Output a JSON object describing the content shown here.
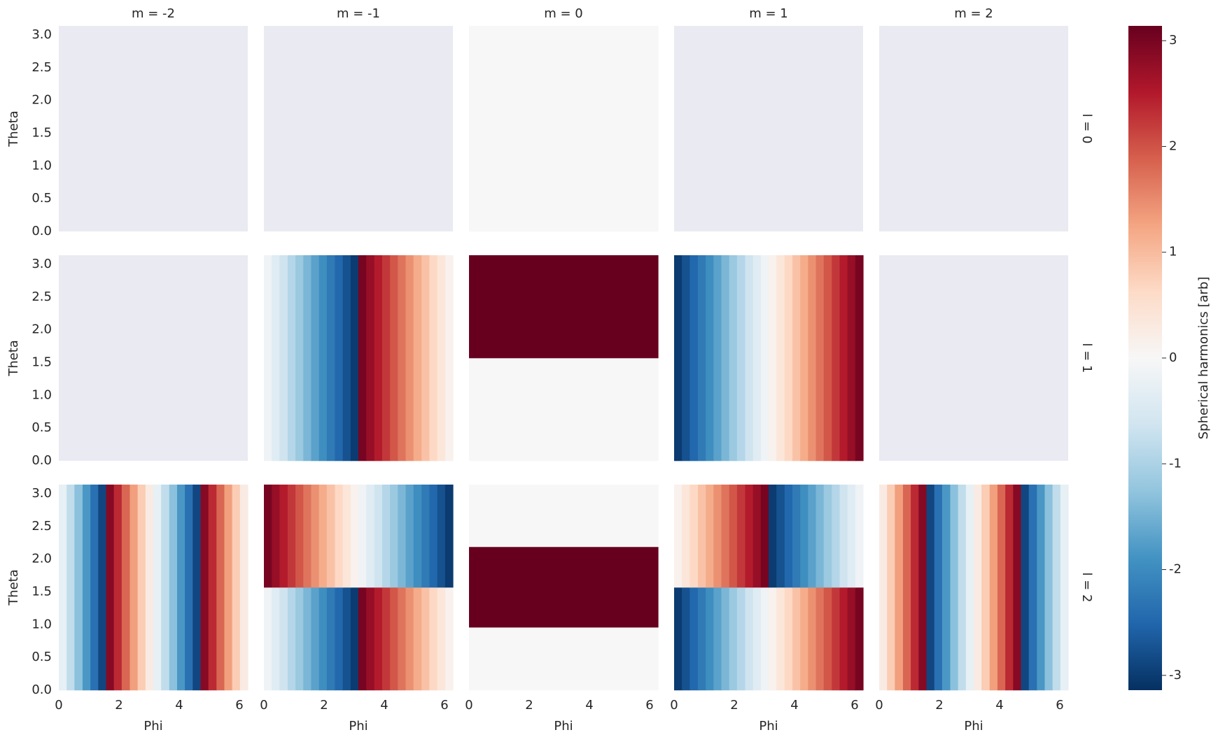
{
  "chart_data": {
    "type": "heatmap-grid",
    "col_titles": [
      "m = -2",
      "m = -1",
      "m = 0",
      "m = 1",
      "m = 2"
    ],
    "row_titles": [
      "l = 0",
      "l = 1",
      "l = 2"
    ],
    "xlabel": "Phi",
    "ylabel": "Theta",
    "xlim": [
      0,
      6.28
    ],
    "ylim": [
      0,
      3.14
    ],
    "xticks": [
      0,
      2,
      4,
      6
    ],
    "yticks": [
      {
        "value": 0,
        "label": "0.0"
      },
      {
        "value": 0.5,
        "label": "0.5"
      },
      {
        "value": 1,
        "label": "1.0"
      },
      {
        "value": 1.5,
        "label": "1.5"
      },
      {
        "value": 2,
        "label": "2.0"
      },
      {
        "value": 2.5,
        "label": "2.5"
      },
      {
        "value": 3,
        "label": "3.0"
      }
    ],
    "background": "#eaeaf2",
    "colormap": [
      "#053061",
      "#2166ac",
      "#4393c3",
      "#92c5de",
      "#d1e5f0",
      "#f7f7f7",
      "#fddbc7",
      "#f4a582",
      "#d6604d",
      "#b2182b",
      "#67001f"
    ],
    "colorbar": {
      "label": "Spherical harmonics [arb]",
      "clim": [
        -3.14,
        3.14
      ],
      "ticks": [
        -3,
        -2,
        -1,
        0,
        1,
        2,
        3
      ]
    },
    "panels": [
      [
        null,
        null,
        {
          "phi_bins": [
            0,
            6.28
          ],
          "theta_bins": [
            0,
            3.14
          ],
          "values": [
            [
              0
            ]
          ]
        },
        null,
        null
      ],
      [
        null,
        {
          "phi_bins": [
            0,
            0.26,
            0.52,
            0.79,
            1.05,
            1.31,
            1.57,
            1.83,
            2.09,
            2.36,
            2.62,
            2.88,
            3.14,
            3.4,
            3.67,
            3.93,
            4.19,
            4.45,
            4.71,
            4.97,
            5.24,
            5.5,
            5.76,
            6.02,
            6.28
          ],
          "theta_bins": [
            0,
            3.14
          ],
          "values": [
            [
              -0.13,
              -0.39,
              -0.65,
              -0.92,
              -1.18,
              -1.44,
              -1.7,
              -1.96,
              -2.23,
              -2.49,
              -2.75,
              -3.01,
              3.01,
              2.75,
              2.49,
              2.23,
              1.96,
              1.7,
              1.44,
              1.18,
              0.92,
              0.65,
              0.39,
              0.13
            ]
          ]
        },
        {
          "phi_bins": [
            0,
            6.28
          ],
          "theta_bins": [
            0,
            1.57,
            3.14
          ],
          "values": [
            [
              0
            ],
            [
              3.14
            ]
          ]
        },
        {
          "phi_bins": [
            0,
            0.26,
            0.52,
            0.79,
            1.05,
            1.31,
            1.57,
            1.83,
            2.09,
            2.36,
            2.62,
            2.88,
            3.14,
            3.4,
            3.67,
            3.93,
            4.19,
            4.45,
            4.71,
            4.97,
            5.24,
            5.5,
            5.76,
            6.02,
            6.28
          ],
          "theta_bins": [
            0,
            3.14
          ],
          "values": [
            [
              -3.01,
              -2.75,
              -2.49,
              -2.23,
              -1.96,
              -1.7,
              -1.44,
              -1.18,
              -0.92,
              -0.65,
              -0.39,
              -0.13,
              0.13,
              0.39,
              0.65,
              0.92,
              1.18,
              1.44,
              1.7,
              1.96,
              2.23,
              2.49,
              2.75,
              3.01
            ]
          ]
        },
        null
      ],
      [
        {
          "phi_bins": [
            0,
            0.26,
            0.52,
            0.79,
            1.05,
            1.31,
            1.57,
            1.83,
            2.09,
            2.36,
            2.62,
            2.88,
            3.14,
            3.4,
            3.67,
            3.93,
            4.19,
            4.45,
            4.71,
            4.97,
            5.24,
            5.5,
            5.76,
            6.02,
            6.28
          ],
          "theta_bins": [
            0,
            3.14
          ],
          "values": [
            [
              -0.26,
              -0.79,
              -1.31,
              -1.83,
              -2.36,
              -2.88,
              2.88,
              2.36,
              1.83,
              1.31,
              0.79,
              0.26,
              -0.26,
              -0.79,
              -1.31,
              -1.83,
              -2.36,
              -2.88,
              2.88,
              2.36,
              1.83,
              1.31,
              0.79,
              0.26
            ]
          ]
        },
        {
          "phi_bins": [
            0,
            0.26,
            0.52,
            0.79,
            1.05,
            1.31,
            1.57,
            1.83,
            2.09,
            2.36,
            2.62,
            2.88,
            3.14,
            3.4,
            3.67,
            3.93,
            4.19,
            4.45,
            4.71,
            4.97,
            5.24,
            5.5,
            5.76,
            6.02,
            6.28
          ],
          "theta_bins": [
            0,
            1.57,
            3.14
          ],
          "values": [
            [
              -0.13,
              -0.39,
              -0.65,
              -0.92,
              -1.18,
              -1.44,
              -1.7,
              -1.96,
              -2.23,
              -2.49,
              -2.75,
              -3.01,
              3.01,
              2.75,
              2.49,
              2.23,
              1.96,
              1.7,
              1.44,
              1.18,
              0.92,
              0.65,
              0.39,
              0.13
            ],
            [
              3.01,
              2.75,
              2.49,
              2.23,
              1.96,
              1.7,
              1.44,
              1.18,
              0.92,
              0.65,
              0.39,
              0.13,
              -0.13,
              -0.39,
              -0.65,
              -0.92,
              -1.18,
              -1.44,
              -1.7,
              -1.96,
              -2.23,
              -2.49,
              -2.75,
              -3.01
            ]
          ]
        },
        {
          "phi_bins": [
            0,
            6.28
          ],
          "theta_bins": [
            0,
            0.96,
            2.19,
            3.14
          ],
          "values": [
            [
              0
            ],
            [
              3.14
            ],
            [
              0
            ]
          ]
        },
        {
          "phi_bins": [
            0,
            0.26,
            0.52,
            0.79,
            1.05,
            1.31,
            1.57,
            1.83,
            2.09,
            2.36,
            2.62,
            2.88,
            3.14,
            3.4,
            3.67,
            3.93,
            4.19,
            4.45,
            4.71,
            4.97,
            5.24,
            5.5,
            5.76,
            6.02,
            6.28
          ],
          "theta_bins": [
            0,
            1.57,
            3.14
          ],
          "values": [
            [
              -3.01,
              -2.75,
              -2.49,
              -2.23,
              -1.96,
              -1.7,
              -1.44,
              -1.18,
              -0.92,
              -0.65,
              -0.39,
              -0.13,
              0.13,
              0.39,
              0.65,
              0.92,
              1.18,
              1.44,
              1.7,
              1.96,
              2.23,
              2.49,
              2.75,
              3.01
            ],
            [
              0.13,
              0.39,
              0.65,
              0.92,
              1.18,
              1.44,
              1.7,
              1.96,
              2.23,
              2.49,
              2.75,
              3.01,
              -3.01,
              -2.75,
              -2.49,
              -2.23,
              -1.96,
              -1.7,
              -1.44,
              -1.18,
              -0.92,
              -0.65,
              -0.39,
              -0.13
            ]
          ]
        },
        {
          "phi_bins": [
            0,
            0.26,
            0.52,
            0.79,
            1.05,
            1.31,
            1.57,
            1.83,
            2.09,
            2.36,
            2.62,
            2.88,
            3.14,
            3.4,
            3.67,
            3.93,
            4.19,
            4.45,
            4.71,
            4.97,
            5.24,
            5.5,
            5.76,
            6.02,
            6.28
          ],
          "theta_bins": [
            0,
            3.14
          ],
          "values": [
            [
              0.26,
              0.79,
              1.31,
              1.83,
              2.36,
              2.88,
              -2.88,
              -2.36,
              -1.83,
              -1.31,
              -0.79,
              -0.26,
              0.26,
              0.79,
              1.31,
              1.83,
              2.36,
              2.88,
              -2.88,
              -2.36,
              -1.83,
              -1.31,
              -0.79,
              -0.26
            ]
          ]
        }
      ]
    ]
  }
}
